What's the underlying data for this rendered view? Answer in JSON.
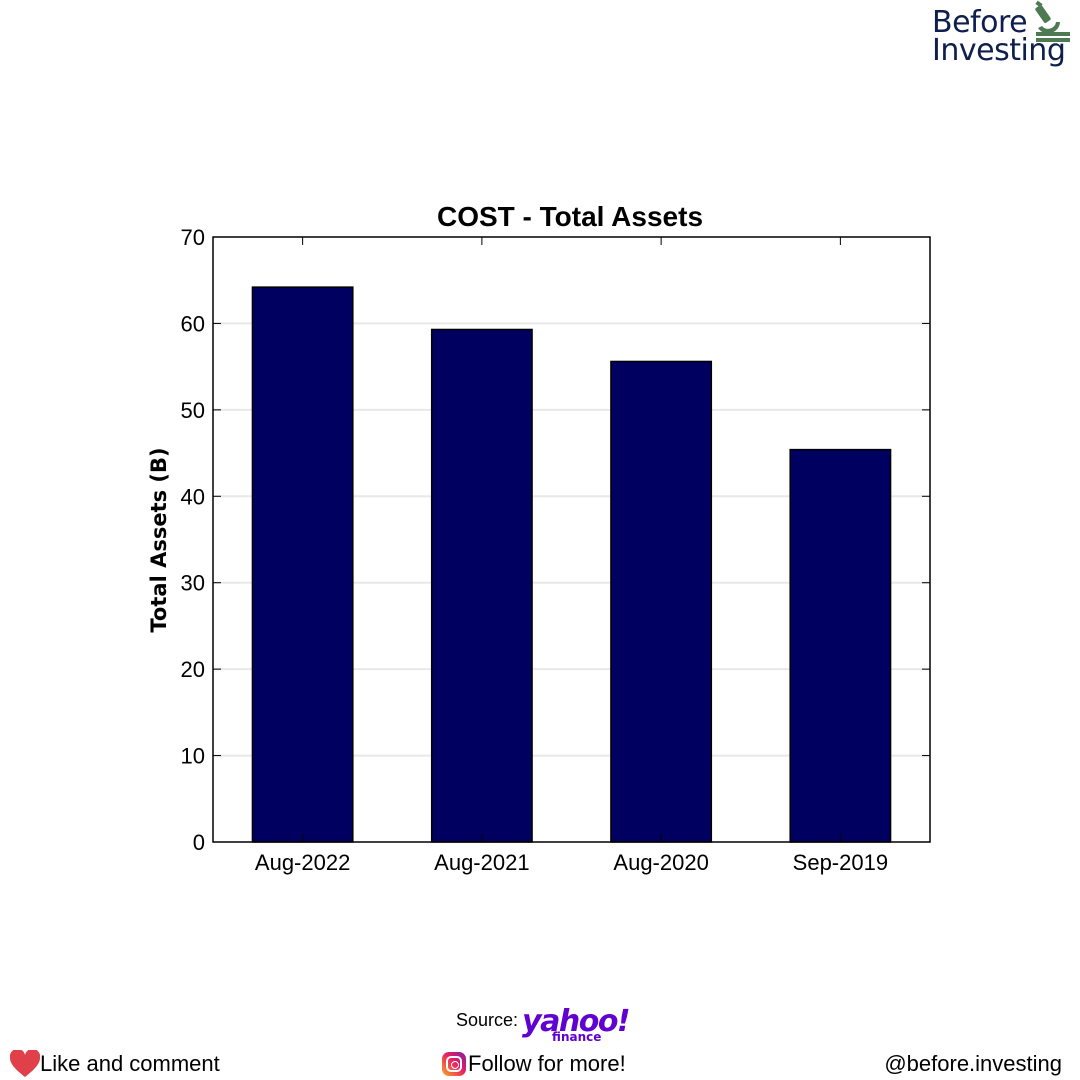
{
  "brand": {
    "line1": "Before",
    "line2": "Investing",
    "icon": "microscope-icon"
  },
  "chart_data": {
    "type": "bar",
    "title": "COST - Total Assets",
    "xlabel": "",
    "ylabel": "Total Assets (B)",
    "categories": [
      "Aug-2022",
      "Aug-2021",
      "Aug-2020",
      "Sep-2019"
    ],
    "values": [
      64.2,
      59.3,
      55.6,
      45.4
    ],
    "ylim": [
      0,
      70
    ],
    "yticks": [
      0,
      10,
      20,
      30,
      40,
      50,
      60,
      70
    ],
    "grid": "horizontal",
    "bar_color": "#000060"
  },
  "footer": {
    "source_label": "Source:",
    "source_logo": "yahoo!",
    "source_logo_sub": "finance",
    "like_text": "Like and comment",
    "like_icon": "heart-icon",
    "follow_text": "Follow for more!",
    "follow_icon": "instagram-icon",
    "handle": "@before.investing",
    "heart_color": "#e0404a",
    "yahoo_color": "#6001d2"
  }
}
